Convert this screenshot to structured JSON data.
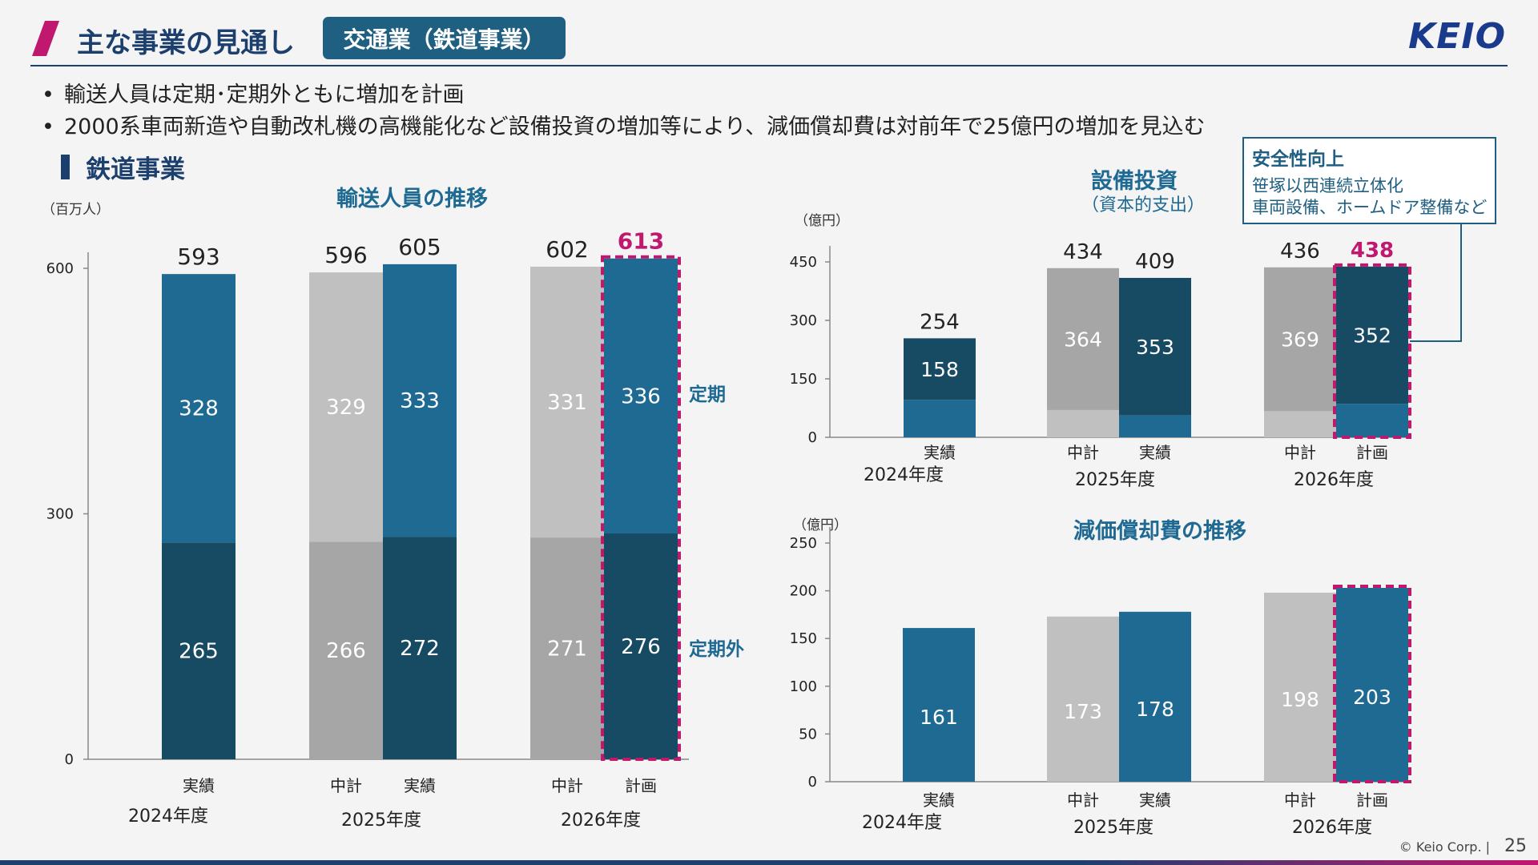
{
  "header": {
    "title": "主な事業の見通し",
    "segment_badge": "交通業（鉄道事業）",
    "brand": "KEIO"
  },
  "bullets": [
    "輸送人員は定期･定期外ともに増加を計画",
    "2000系車両新造や自動改札機の高機能化など設備投資の増加等により、減価償却費は対前年で25億円の増加を見込む"
  ],
  "section_title": "鉄道事業",
  "callout": {
    "heading": "安全性向上",
    "lines": [
      "笹塚以西連続立体化",
      "車両設備、ホームドア整備など"
    ]
  },
  "footer": {
    "copyright": "© Keio Corp.  |",
    "page": "25"
  },
  "colors": {
    "navy": "#1c3f6e",
    "teal_blue": "#1f6a93",
    "teal_dark": "#174a63",
    "gray_light": "#c0c0c0",
    "gray_mid": "#a6a6a6",
    "highlight": "#c0186e"
  },
  "chart_data": [
    {
      "id": "passengers",
      "type": "bar",
      "stacked": true,
      "title": "輸送人員の推移",
      "unit_label": "（百万人）",
      "ylim": [
        0,
        600
      ],
      "yticks": [
        0,
        300,
        600
      ],
      "categories": [
        "実績",
        "中計",
        "実績",
        "中計",
        "計画"
      ],
      "years": [
        "2024年度",
        "2025年度",
        "2025年度",
        "2026年度",
        "2026年度"
      ],
      "year_labels": [
        "2024年度",
        "2025年度",
        "2026年度"
      ],
      "bar_style": [
        "actual",
        "plan",
        "actual",
        "plan",
        "highlight"
      ],
      "series": [
        {
          "name": "定期外",
          "values": [
            265,
            266,
            272,
            271,
            276
          ]
        },
        {
          "name": "定期",
          "values": [
            328,
            329,
            333,
            331,
            336
          ]
        }
      ],
      "totals": [
        593,
        596,
        605,
        602,
        613
      ]
    },
    {
      "id": "capex",
      "type": "bar",
      "stacked": true,
      "title": "設備投資",
      "subtitle": "（資本的支出）",
      "unit_label": "（億円）",
      "ylim": [
        0,
        450
      ],
      "yticks": [
        0,
        150,
        300,
        450
      ],
      "categories": [
        "実績",
        "中計",
        "実績",
        "中計",
        "計画"
      ],
      "years": [
        "2024年度",
        "2025年度",
        "2025年度",
        "2026年度",
        "2026年度"
      ],
      "year_labels": [
        "2024年度",
        "2025年度",
        "2026年度"
      ],
      "bar_style": [
        "actual",
        "plan",
        "actual",
        "plan",
        "highlight"
      ],
      "series": [
        {
          "name": "",
          "values": [
            96,
            70,
            56,
            67,
            86
          ]
        },
        {
          "name": "安全性向上",
          "values": [
            158,
            364,
            353,
            369,
            352
          ]
        }
      ],
      "totals": [
        254,
        434,
        409,
        436,
        438
      ]
    },
    {
      "id": "depreciation",
      "type": "bar",
      "title": "減価償却費の推移",
      "unit_label": "（億円）",
      "ylim": [
        0,
        250
      ],
      "yticks": [
        0,
        50,
        100,
        150,
        200,
        250
      ],
      "categories": [
        "実績",
        "中計",
        "実績",
        "中計",
        "計画"
      ],
      "years": [
        "2024年度",
        "2025年度",
        "2025年度",
        "2026年度",
        "2026年度"
      ],
      "year_labels": [
        "2024年度",
        "2025年度",
        "2026年度"
      ],
      "bar_style": [
        "actual",
        "plan",
        "actual",
        "plan",
        "highlight"
      ],
      "values": [
        161,
        173,
        178,
        198,
        203
      ]
    }
  ]
}
